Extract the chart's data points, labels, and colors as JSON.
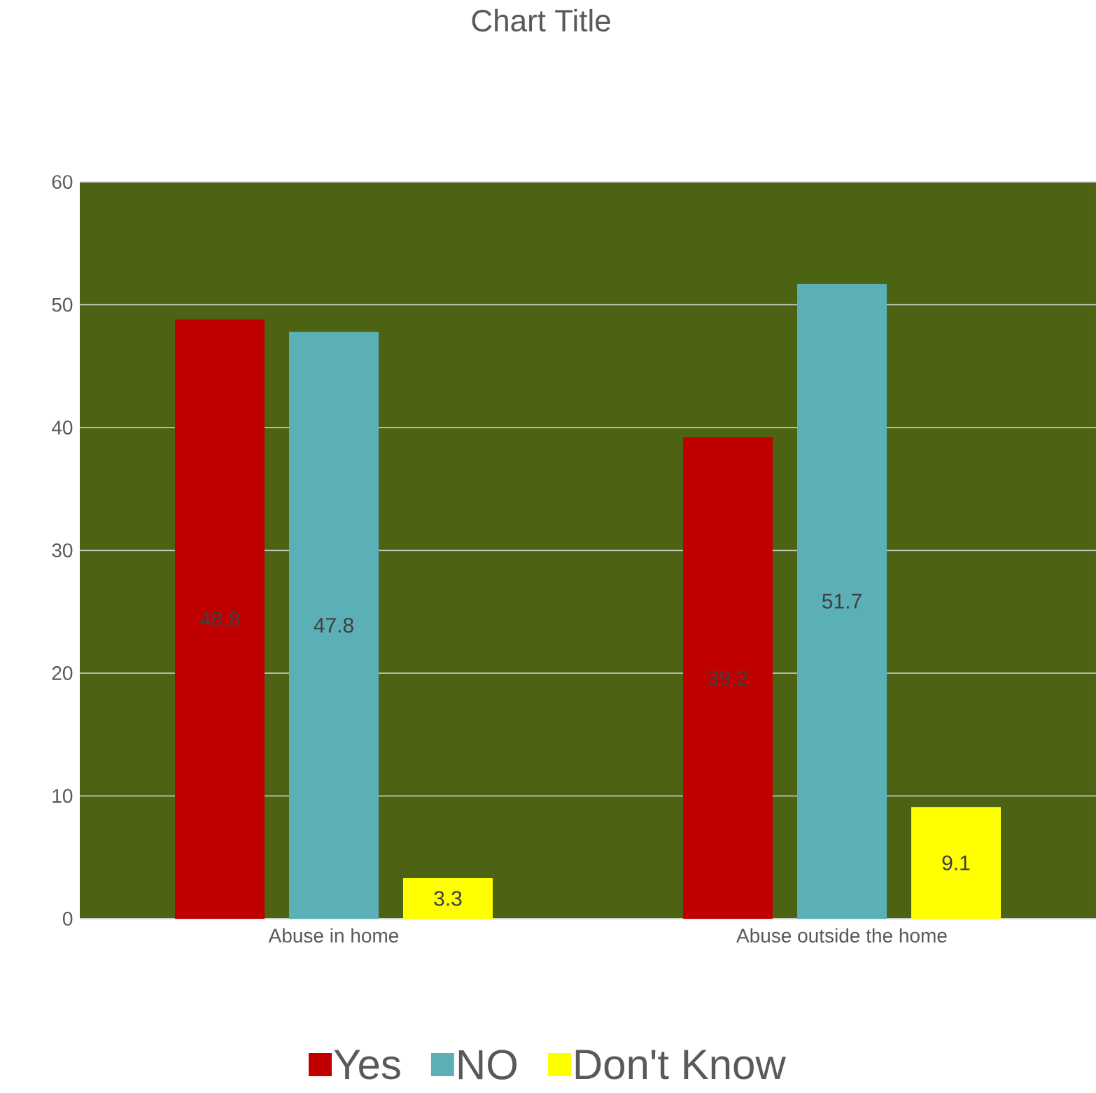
{
  "chart_data": {
    "type": "bar",
    "title": "Chart Title",
    "categories": [
      "Abuse in home",
      "Abuse outside the home"
    ],
    "series": [
      {
        "name": "Yes",
        "color": "#c00000",
        "values": [
          48.8,
          39.2
        ]
      },
      {
        "name": "NO",
        "color": "#5bb0b8",
        "values": [
          47.8,
          51.7
        ]
      },
      {
        "name": "Don't Know",
        "color": "#ffff00",
        "values": [
          3.3,
          9.1
        ]
      }
    ],
    "ylim": [
      0,
      60
    ],
    "yticks": [
      0,
      10,
      20,
      30,
      40,
      50,
      60
    ],
    "grid": "y",
    "legend": "bottom",
    "data_labels": true
  }
}
